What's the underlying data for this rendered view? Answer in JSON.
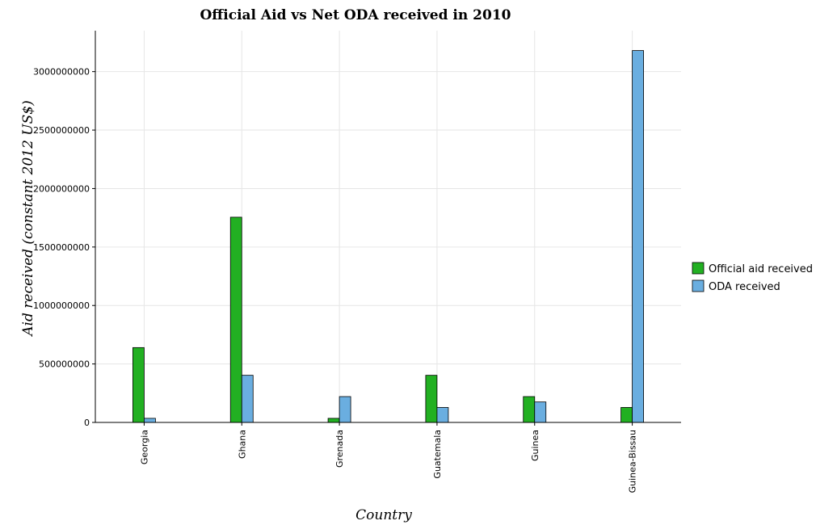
{
  "chart_data": {
    "type": "bar",
    "title": "Official Aid vs Net ODA received in 2010",
    "xlabel": "Country",
    "ylabel": "Aid received (constant 2012 US$)",
    "categories": [
      "Georgia",
      "Ghana",
      "Grenada",
      "Guatemala",
      "Guinea",
      "Guinea-Bissau"
    ],
    "series": [
      {
        "name": "Official aid received",
        "color": "#22b022",
        "values": [
          640000000,
          1755000000,
          35000000,
          403000000,
          221000000,
          128000000
        ]
      },
      {
        "name": "ODA received",
        "color": "#6aaee0",
        "values": [
          35000000,
          403000000,
          221000000,
          128000000,
          175000000,
          3180000000
        ]
      }
    ],
    "ylim": [
      0,
      3350000000
    ],
    "yticks": [
      0,
      500000000,
      1000000000,
      1500000000,
      2000000000,
      2500000000,
      3000000000
    ],
    "ytick_labels": [
      "0",
      "500000000",
      "1000000000",
      "1500000000",
      "2000000000",
      "2500000000",
      "3000000000"
    ],
    "grid": true,
    "legend_position": "right"
  }
}
